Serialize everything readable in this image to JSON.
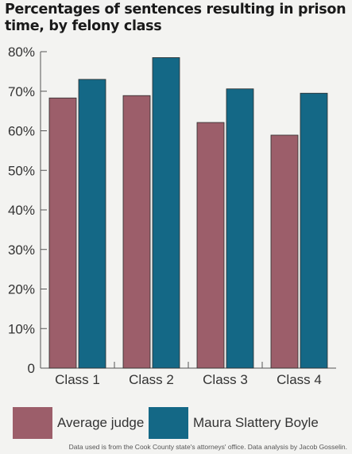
{
  "title": "Percentages of sentences resulting in prison time, by felony class",
  "footnote": "Data used is from the Cook County state's attorneys' office. Data analysis by Jacob Gosselin.",
  "chart_data": {
    "type": "bar",
    "title": "Percentages of sentences resulting in prison time, by felony class",
    "categories": [
      "Class 1",
      "Class 2",
      "Class 3",
      "Class 4"
    ],
    "series": [
      {
        "name": "Average judge",
        "color": "#9c5e6a",
        "values": [
          68.3,
          68.9,
          62.1,
          58.9
        ]
      },
      {
        "name": "Maura Slattery Boyle",
        "color": "#146886",
        "values": [
          73.0,
          78.5,
          70.6,
          69.5
        ]
      }
    ],
    "yticks": [
      "0",
      "10%",
      "20%",
      "30%",
      "40%",
      "50%",
      "60%",
      "70%",
      "80%"
    ],
    "ylim": [
      0,
      80
    ],
    "xlabel": "",
    "ylabel": "",
    "grid": false,
    "legend_position": "bottom"
  }
}
